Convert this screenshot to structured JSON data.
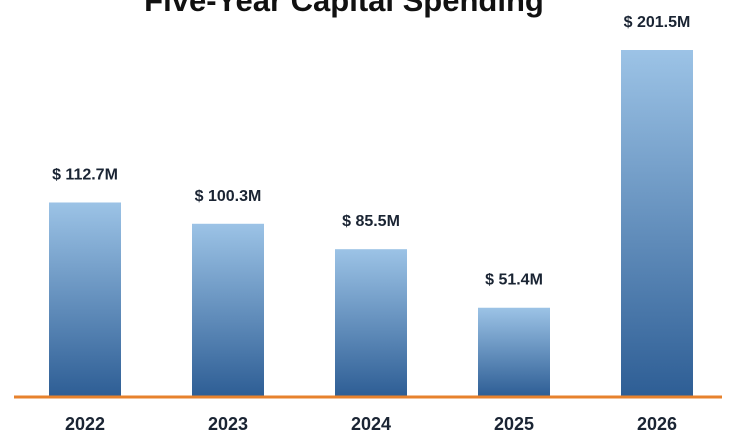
{
  "chart_data": {
    "type": "bar",
    "title": "Five-Year Capital Spending",
    "categories": [
      "2022",
      "2023",
      "2024",
      "2025",
      "2026"
    ],
    "values": [
      112.7,
      100.3,
      85.5,
      51.4,
      201.5
    ],
    "value_labels": [
      "$ 112.7M",
      "$ 100.3M",
      "$ 85.5M",
      "$ 51.4M",
      "$ 201.5M"
    ],
    "xlabel": "",
    "ylabel": "",
    "ylim": [
      0,
      201.5
    ],
    "grid": false,
    "legend": "none"
  },
  "colors": {
    "bar_top": "#9cc3e6",
    "bar_bottom": "#2e5e95",
    "baseline": "#e7822d",
    "text": "#1a2433"
  }
}
